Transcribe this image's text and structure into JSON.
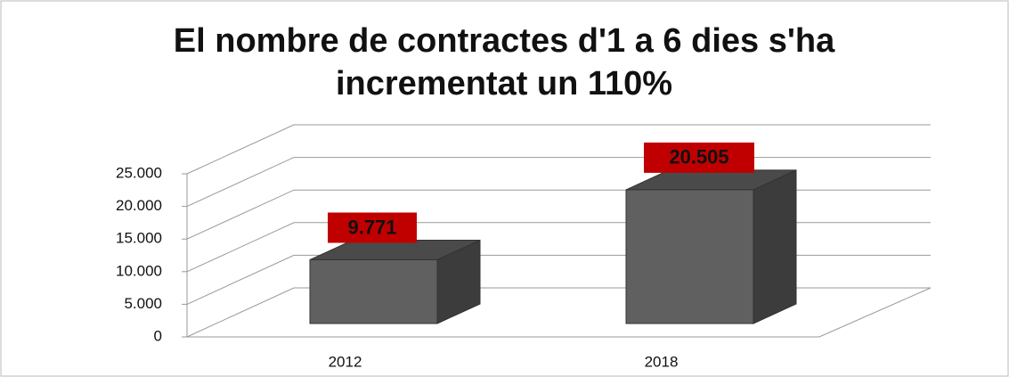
{
  "chart_data": {
    "type": "bar",
    "title": "El nombre de contractes d'1 a 6 dies s'ha incrementat un 110%",
    "categories": [
      "2012",
      "2018"
    ],
    "values": [
      9771,
      20505
    ],
    "value_labels": [
      "9.771",
      "20.505"
    ],
    "color": "#606060",
    "label_color": "#c00000",
    "ylim": [
      0,
      25000
    ],
    "yticks": [
      0,
      {
        "value": 5000,
        "label": "5.000"
      },
      {
        "value": 10000,
        "label": "10.000"
      },
      {
        "value": 15000,
        "label": "15.000"
      },
      {
        "value": 20000,
        "label": "20.000"
      },
      {
        "value": 25000,
        "label": "25.000"
      }
    ],
    "grid": true
  }
}
